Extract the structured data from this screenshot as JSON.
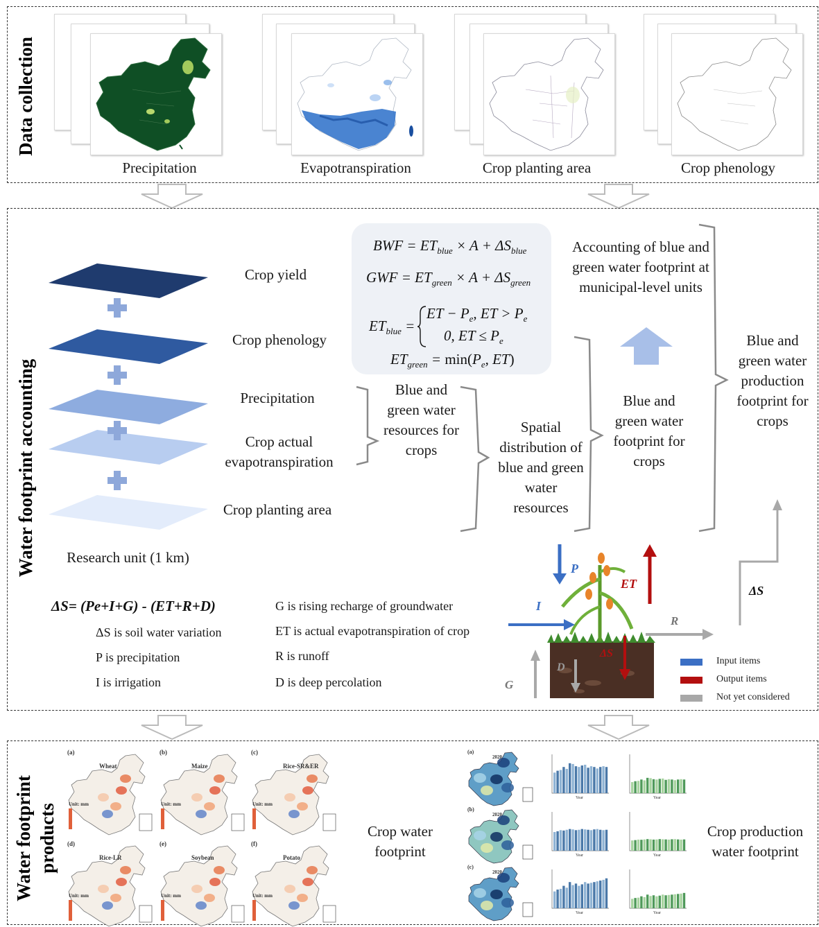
{
  "sections": {
    "data_collection": "Data collection",
    "accounting": "Water footprint accounting",
    "products_line1": "Water footprint",
    "products_line2": "products"
  },
  "data_sources": [
    "Precipitation",
    "Evapotranspiration",
    "Crop planting area",
    "Crop phenology"
  ],
  "layers": {
    "crop_yield": "Crop yield",
    "crop_phenology": "Crop phenology",
    "precipitation": "Precipitation",
    "crop_actual_et_1": "Crop actual",
    "crop_actual_et_2": "evapotranspiration",
    "crop_planting_area": "Crop planting area",
    "research_unit": "Research unit (1 km)"
  },
  "formulas": {
    "bwf": "BWF = ET_blue × A + ΔS_blue",
    "gwf": "GWF = ET_green × A + ΔS_green",
    "et_blue_1": "ET − P_e, ET > P_e",
    "et_blue_2": "0, ET ≤ P_e",
    "et_green": "ET_green = min(P_e, ET)"
  },
  "flow": {
    "resources": "Blue and green water resources for crops",
    "spatial": "Spatial distribution of blue and green water resources",
    "footprint": "Blue and green water footprint for crops",
    "accounting": "Accounting of blue and green water footprint at municipal-level units",
    "production": "Blue and green water production footprint for crops"
  },
  "equation": {
    "main": "ΔS= (Pe+I+G) - (ET+R+D)",
    "defs_left": [
      "ΔS is soil water variation",
      "P is precipitation",
      "I is irrigation"
    ],
    "defs_right": [
      "G is rising recharge of groundwater",
      "ET is actual evapotranspiration of crop",
      "R is runoff",
      "D is deep percolation"
    ]
  },
  "water_balance": {
    "P": "P",
    "ET": "ET",
    "I": "I",
    "R": "R",
    "D": "D",
    "G": "G",
    "dS": "ΔS",
    "dS_right": "ΔS"
  },
  "legend": [
    {
      "label": "Input items",
      "color": "#3b6fc4"
    },
    {
      "label": "Output items",
      "color": "#b30f0f"
    },
    {
      "label": "Not yet considered",
      "color": "#a8a8a8"
    }
  ],
  "products": {
    "crop_wf": "Crop water footprint",
    "crop_prod_wf": "Crop production water footprint",
    "panel_crops": [
      "Wheat",
      "Maize",
      "Rice-SR&ER",
      "Rice-LR",
      "Soybean",
      "Potato"
    ],
    "panel_tags": [
      "(a)",
      "(b)",
      "(c)",
      "(d)",
      "(e)",
      "(f)"
    ],
    "unit_label": "Unit: mm",
    "year": "2020",
    "axis_year": "Year"
  },
  "colors": {
    "layer_dark": "#1f3b6e",
    "layer_mid": "#2f5aa0",
    "layer_light": "#a9c0ea",
    "plus": "#8ea8da",
    "input": "#3b6fc4",
    "output": "#b30f0f",
    "neutral": "#a8a8a8",
    "precip_map": "#0f4f25",
    "et_map": "#2a6fc9"
  }
}
